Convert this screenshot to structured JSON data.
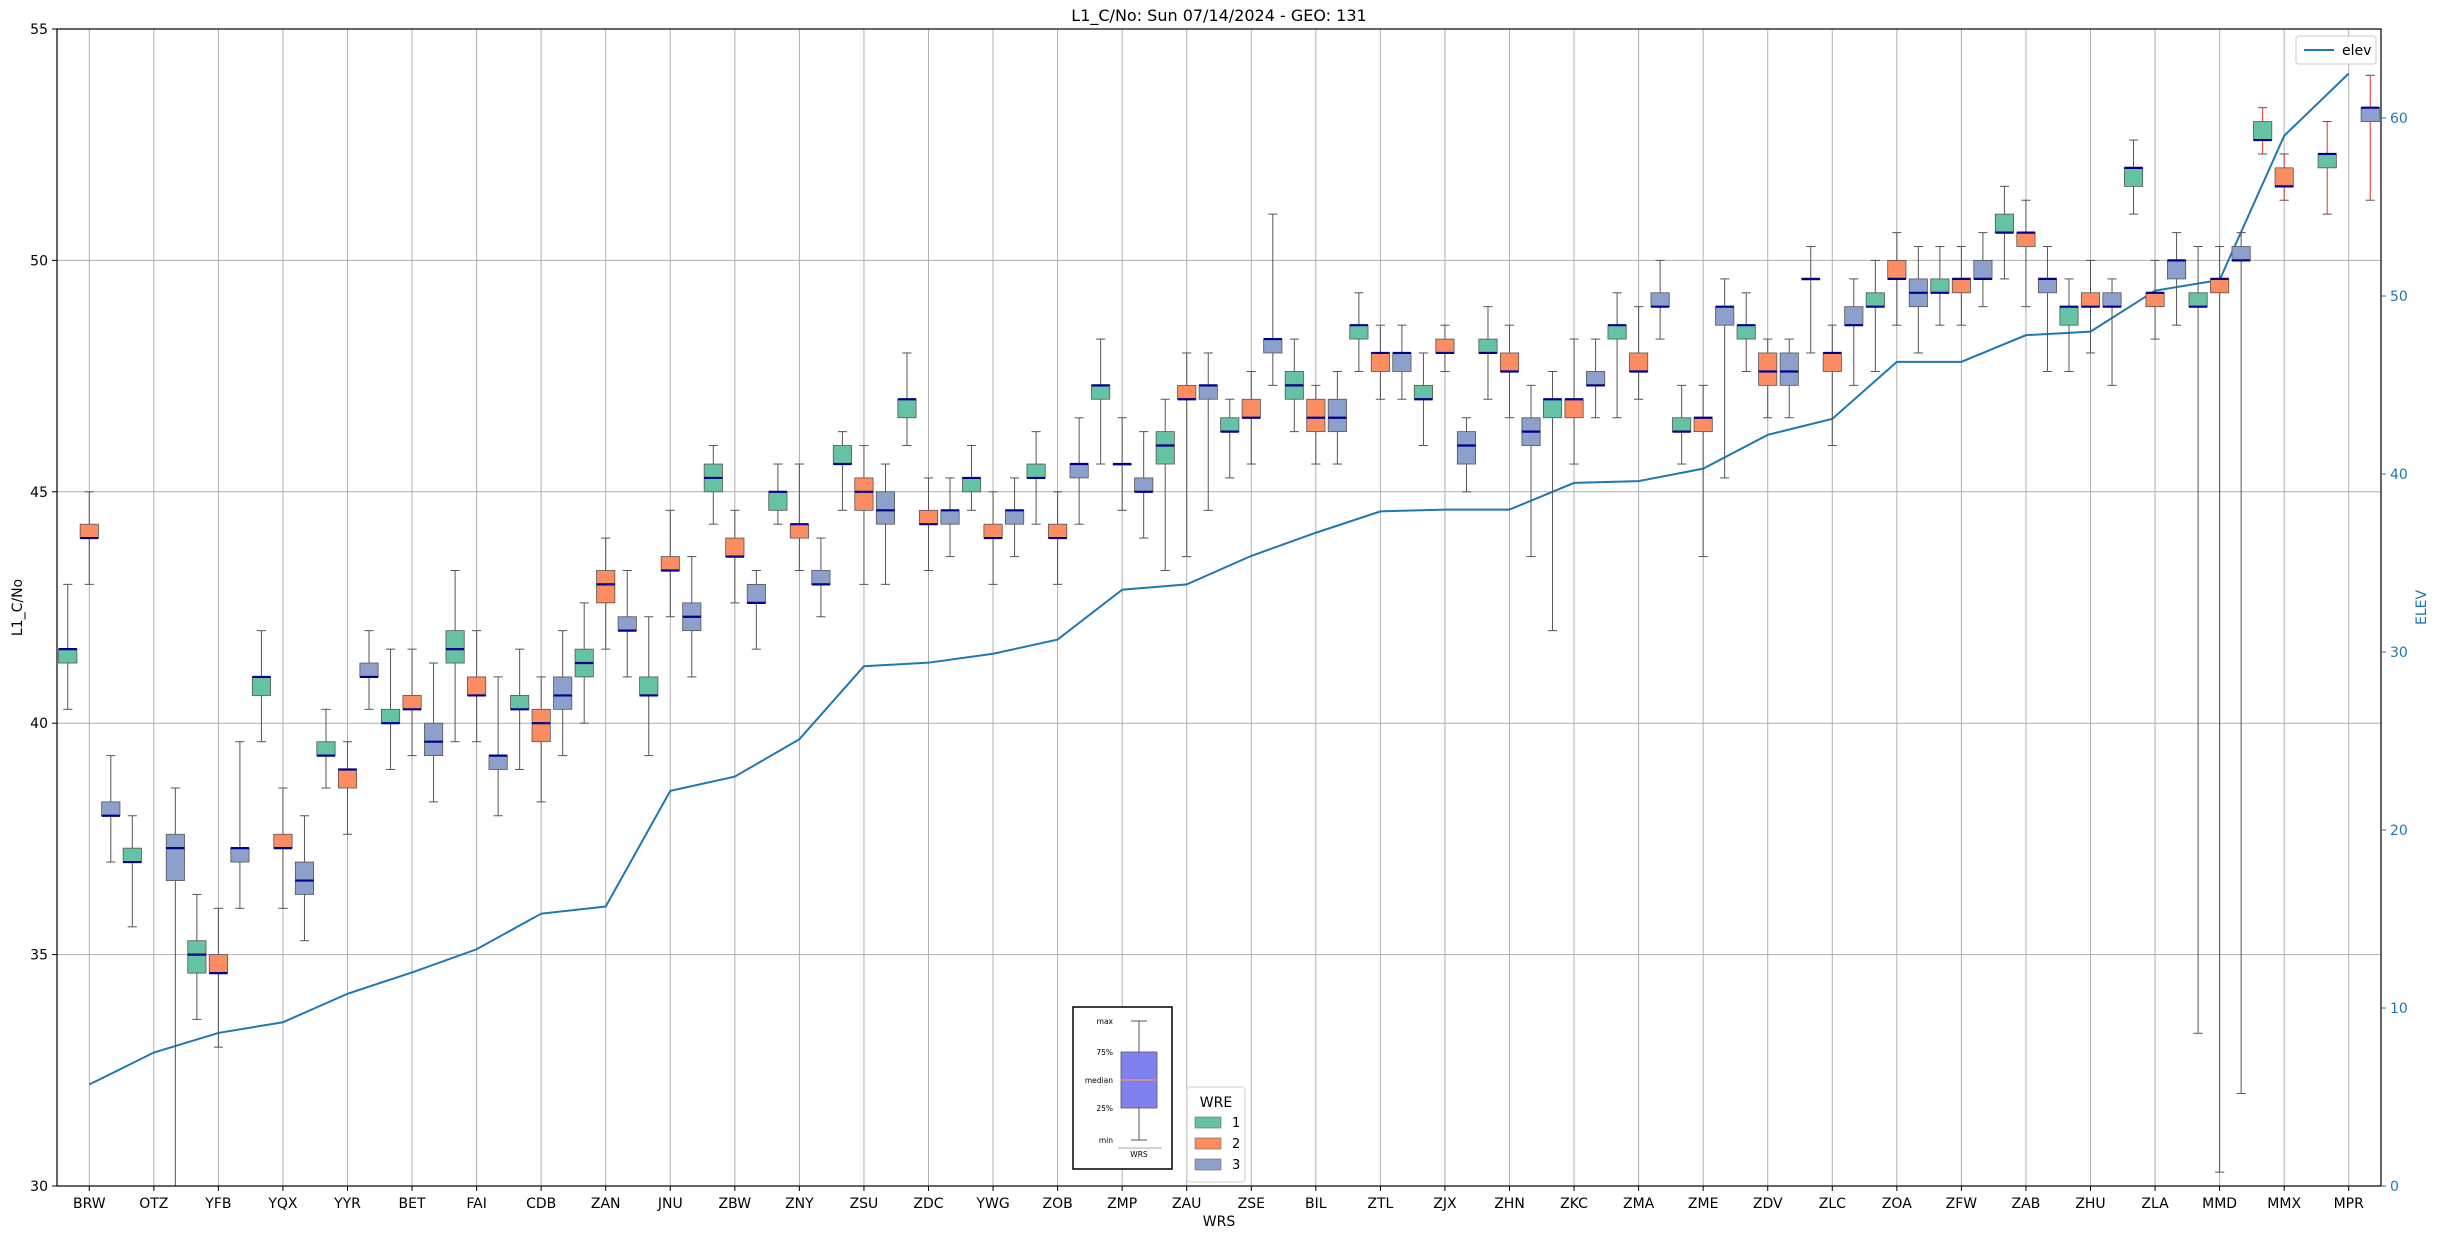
{
  "chart_data": {
    "type": "box",
    "title": "L1_C/No: Sun 07/14/2024 - GEO: 131",
    "xlabel": "WRS",
    "ylabel": "L1_C/No",
    "y2label": "ELEV",
    "ylim": [
      30,
      55
    ],
    "y2lim": [
      0,
      65
    ],
    "yticks": [
      30,
      35,
      40,
      45,
      50,
      55
    ],
    "y2ticks": [
      0,
      10,
      20,
      30,
      40,
      50,
      60
    ],
    "grid": true,
    "categories": [
      "BRW",
      "OTZ",
      "YFB",
      "YQX",
      "YYR",
      "BET",
      "FAI",
      "CDB",
      "ZAN",
      "JNU",
      "ZBW",
      "ZNY",
      "ZSU",
      "ZDC",
      "YWG",
      "ZOB",
      "ZMP",
      "ZAU",
      "ZSE",
      "BIL",
      "ZTL",
      "ZJX",
      "ZHN",
      "ZKC",
      "ZMA",
      "ZME",
      "ZDV",
      "ZLC",
      "ZOA",
      "ZFW",
      "ZAB",
      "ZHU",
      "ZLA",
      "MMD",
      "MMX",
      "MPR"
    ],
    "series_colors": {
      "1": "#66c2a5",
      "2": "#fc8d62",
      "3": "#8da0cb"
    },
    "median_color": "#00008b",
    "boxes": [
      {
        "site": "BRW",
        "wre": "1",
        "min": 40.3,
        "q1": 41.3,
        "median": 41.6,
        "q3": 41.6,
        "max": 43.0
      },
      {
        "site": "BRW",
        "wre": "2",
        "min": 43.0,
        "q1": 44.0,
        "median": 44.0,
        "q3": 44.3,
        "max": 45.0
      },
      {
        "site": "BRW",
        "wre": "3",
        "min": 37.0,
        "q1": 38.0,
        "median": 38.0,
        "q3": 38.3,
        "max": 39.3
      },
      {
        "site": "OTZ",
        "wre": "1",
        "min": 35.6,
        "q1": 37.0,
        "median": 37.0,
        "q3": 37.3,
        "max": 38.0
      },
      {
        "site": "OTZ",
        "wre": "3",
        "min": 30.0,
        "q1": 36.6,
        "median": 37.3,
        "q3": 37.6,
        "max": 38.6
      },
      {
        "site": "YFB",
        "wre": "1",
        "min": 33.6,
        "q1": 34.6,
        "median": 35.0,
        "q3": 35.3,
        "max": 36.3
      },
      {
        "site": "YFB",
        "wre": "2",
        "min": 33.0,
        "q1": 34.6,
        "median": 34.6,
        "q3": 35.0,
        "max": 36.0
      },
      {
        "site": "YFB",
        "wre": "3",
        "min": 36.0,
        "q1": 37.0,
        "median": 37.3,
        "q3": 37.3,
        "max": 39.6
      },
      {
        "site": "YQX",
        "wre": "1",
        "min": 39.6,
        "q1": 40.6,
        "median": 41.0,
        "q3": 41.0,
        "max": 42.0
      },
      {
        "site": "YQX",
        "wre": "2",
        "min": 36.0,
        "q1": 37.3,
        "median": 37.3,
        "q3": 37.6,
        "max": 38.6
      },
      {
        "site": "YQX",
        "wre": "3",
        "min": 35.3,
        "q1": 36.3,
        "median": 36.6,
        "q3": 37.0,
        "max": 38.0
      },
      {
        "site": "YYR",
        "wre": "1",
        "min": 38.6,
        "q1": 39.3,
        "median": 39.3,
        "q3": 39.6,
        "max": 40.3
      },
      {
        "site": "YYR",
        "wre": "2",
        "min": 37.6,
        "q1": 38.6,
        "median": 39.0,
        "q3": 39.0,
        "max": 39.6
      },
      {
        "site": "YYR",
        "wre": "3",
        "min": 40.3,
        "q1": 41.0,
        "median": 41.0,
        "q3": 41.3,
        "max": 42.0
      },
      {
        "site": "BET",
        "wre": "1",
        "min": 39.0,
        "q1": 40.0,
        "median": 40.0,
        "q3": 40.3,
        "max": 41.6
      },
      {
        "site": "BET",
        "wre": "2",
        "min": 39.3,
        "q1": 40.3,
        "median": 40.3,
        "q3": 40.6,
        "max": 41.6
      },
      {
        "site": "BET",
        "wre": "3",
        "min": 38.3,
        "q1": 39.3,
        "median": 39.6,
        "q3": 40.0,
        "max": 41.3
      },
      {
        "site": "FAI",
        "wre": "1",
        "min": 39.6,
        "q1": 41.3,
        "median": 41.6,
        "q3": 42.0,
        "max": 43.3
      },
      {
        "site": "FAI",
        "wre": "2",
        "min": 39.6,
        "q1": 40.6,
        "median": 40.6,
        "q3": 41.0,
        "max": 42.0
      },
      {
        "site": "FAI",
        "wre": "3",
        "min": 38.0,
        "q1": 39.0,
        "median": 39.3,
        "q3": 39.3,
        "max": 41.0
      },
      {
        "site": "CDB",
        "wre": "1",
        "min": 39.0,
        "q1": 40.3,
        "median": 40.3,
        "q3": 40.6,
        "max": 41.6
      },
      {
        "site": "CDB",
        "wre": "2",
        "min": 38.3,
        "q1": 39.6,
        "median": 40.0,
        "q3": 40.3,
        "max": 41.0
      },
      {
        "site": "CDB",
        "wre": "3",
        "min": 39.3,
        "q1": 40.3,
        "median": 40.6,
        "q3": 41.0,
        "max": 42.0
      },
      {
        "site": "ZAN",
        "wre": "1",
        "min": 40.0,
        "q1": 41.0,
        "median": 41.3,
        "q3": 41.6,
        "max": 42.6
      },
      {
        "site": "ZAN",
        "wre": "2",
        "min": 41.6,
        "q1": 42.6,
        "median": 43.0,
        "q3": 43.3,
        "max": 44.0
      },
      {
        "site": "ZAN",
        "wre": "3",
        "min": 41.0,
        "q1": 42.0,
        "median": 42.0,
        "q3": 42.3,
        "max": 43.3
      },
      {
        "site": "JNU",
        "wre": "1",
        "min": 39.3,
        "q1": 40.6,
        "median": 40.6,
        "q3": 41.0,
        "max": 42.3
      },
      {
        "site": "JNU",
        "wre": "2",
        "min": 42.3,
        "q1": 43.3,
        "median": 43.3,
        "q3": 43.6,
        "max": 44.6
      },
      {
        "site": "JNU",
        "wre": "3",
        "min": 41.0,
        "q1": 42.0,
        "median": 42.3,
        "q3": 42.6,
        "max": 43.6
      },
      {
        "site": "ZBW",
        "wre": "1",
        "min": 44.3,
        "q1": 45.0,
        "median": 45.3,
        "q3": 45.6,
        "max": 46.0
      },
      {
        "site": "ZBW",
        "wre": "2",
        "min": 42.6,
        "q1": 43.6,
        "median": 43.6,
        "q3": 44.0,
        "max": 44.6
      },
      {
        "site": "ZBW",
        "wre": "3",
        "min": 41.6,
        "q1": 42.6,
        "median": 42.6,
        "q3": 43.0,
        "max": 43.3
      },
      {
        "site": "ZNY",
        "wre": "1",
        "min": 44.3,
        "q1": 44.6,
        "median": 45.0,
        "q3": 45.0,
        "max": 45.6
      },
      {
        "site": "ZNY",
        "wre": "2",
        "min": 43.3,
        "q1": 44.0,
        "median": 44.3,
        "q3": 44.3,
        "max": 45.6
      },
      {
        "site": "ZNY",
        "wre": "3",
        "min": 42.3,
        "q1": 43.0,
        "median": 43.0,
        "q3": 43.3,
        "max": 44.0
      },
      {
        "site": "ZSU",
        "wre": "1",
        "min": 44.6,
        "q1": 45.6,
        "median": 45.6,
        "q3": 46.0,
        "max": 46.3
      },
      {
        "site": "ZSU",
        "wre": "2",
        "min": 43.0,
        "q1": 44.6,
        "median": 45.0,
        "q3": 45.3,
        "max": 46.0
      },
      {
        "site": "ZSU",
        "wre": "3",
        "min": 43.0,
        "q1": 44.3,
        "median": 44.6,
        "q3": 45.0,
        "max": 45.6
      },
      {
        "site": "ZDC",
        "wre": "1",
        "min": 46.0,
        "q1": 46.6,
        "median": 47.0,
        "q3": 47.0,
        "max": 48.0
      },
      {
        "site": "ZDC",
        "wre": "2",
        "min": 43.3,
        "q1": 44.3,
        "median": 44.3,
        "q3": 44.6,
        "max": 45.3
      },
      {
        "site": "ZDC",
        "wre": "3",
        "min": 43.6,
        "q1": 44.3,
        "median": 44.6,
        "q3": 44.6,
        "max": 45.3
      },
      {
        "site": "YWG",
        "wre": "1",
        "min": 44.6,
        "q1": 45.0,
        "median": 45.3,
        "q3": 45.3,
        "max": 46.0
      },
      {
        "site": "YWG",
        "wre": "2",
        "min": 43.0,
        "q1": 44.0,
        "median": 44.0,
        "q3": 44.3,
        "max": 45.0
      },
      {
        "site": "YWG",
        "wre": "3",
        "min": 43.6,
        "q1": 44.3,
        "median": 44.6,
        "q3": 44.6,
        "max": 45.3
      },
      {
        "site": "ZOB",
        "wre": "1",
        "min": 44.3,
        "q1": 45.3,
        "median": 45.3,
        "q3": 45.6,
        "max": 46.3
      },
      {
        "site": "ZOB",
        "wre": "2",
        "min": 43.0,
        "q1": 44.0,
        "median": 44.0,
        "q3": 44.3,
        "max": 45.0
      },
      {
        "site": "ZOB",
        "wre": "3",
        "min": 44.3,
        "q1": 45.3,
        "median": 45.6,
        "q3": 45.6,
        "max": 46.6
      },
      {
        "site": "ZMP",
        "wre": "1",
        "min": 45.6,
        "q1": 47.0,
        "median": 47.3,
        "q3": 47.3,
        "max": 48.3
      },
      {
        "site": "ZMP",
        "wre": "2",
        "min": 44.6,
        "q1": 45.6,
        "median": 45.6,
        "q3": 45.6,
        "max": 46.6
      },
      {
        "site": "ZMP",
        "wre": "3",
        "min": 44.0,
        "q1": 45.0,
        "median": 45.0,
        "q3": 45.3,
        "max": 46.3
      },
      {
        "site": "ZAU",
        "wre": "1",
        "min": 43.3,
        "q1": 45.6,
        "median": 46.0,
        "q3": 46.3,
        "max": 47.0
      },
      {
        "site": "ZAU",
        "wre": "2",
        "min": 43.6,
        "q1": 47.0,
        "median": 47.0,
        "q3": 47.3,
        "max": 48.0
      },
      {
        "site": "ZAU",
        "wre": "3",
        "min": 44.6,
        "q1": 47.0,
        "median": 47.3,
        "q3": 47.3,
        "max": 48.0
      },
      {
        "site": "ZSE",
        "wre": "1",
        "min": 45.3,
        "q1": 46.3,
        "median": 46.3,
        "q3": 46.6,
        "max": 47.0
      },
      {
        "site": "ZSE",
        "wre": "2",
        "min": 45.6,
        "q1": 46.6,
        "median": 46.6,
        "q3": 47.0,
        "max": 47.6
      },
      {
        "site": "ZSE",
        "wre": "3",
        "min": 47.3,
        "q1": 48.0,
        "median": 48.3,
        "q3": 48.3,
        "max": 51.0
      },
      {
        "site": "BIL",
        "wre": "1",
        "min": 46.3,
        "q1": 47.0,
        "median": 47.3,
        "q3": 47.6,
        "max": 48.3
      },
      {
        "site": "BIL",
        "wre": "2",
        "min": 45.6,
        "q1": 46.3,
        "median": 46.6,
        "q3": 47.0,
        "max": 47.3
      },
      {
        "site": "BIL",
        "wre": "3",
        "min": 45.6,
        "q1": 46.3,
        "median": 46.6,
        "q3": 47.0,
        "max": 47.6
      },
      {
        "site": "ZTL",
        "wre": "1",
        "min": 47.6,
        "q1": 48.3,
        "median": 48.6,
        "q3": 48.6,
        "max": 49.3
      },
      {
        "site": "ZTL",
        "wre": "2",
        "min": 47.0,
        "q1": 47.6,
        "median": 48.0,
        "q3": 48.0,
        "max": 48.6
      },
      {
        "site": "ZTL",
        "wre": "3",
        "min": 47.0,
        "q1": 47.6,
        "median": 48.0,
        "q3": 48.0,
        "max": 48.6
      },
      {
        "site": "ZJX",
        "wre": "1",
        "min": 46.0,
        "q1": 47.0,
        "median": 47.0,
        "q3": 47.3,
        "max": 48.0
      },
      {
        "site": "ZJX",
        "wre": "2",
        "min": 47.6,
        "q1": 48.0,
        "median": 48.0,
        "q3": 48.3,
        "max": 48.6
      },
      {
        "site": "ZJX",
        "wre": "3",
        "min": 45.0,
        "q1": 45.6,
        "median": 46.0,
        "q3": 46.3,
        "max": 46.6
      },
      {
        "site": "ZHN",
        "wre": "1",
        "min": 47.0,
        "q1": 48.0,
        "median": 48.0,
        "q3": 48.3,
        "max": 49.0
      },
      {
        "site": "ZHN",
        "wre": "2",
        "min": 46.6,
        "q1": 47.6,
        "median": 47.6,
        "q3": 48.0,
        "max": 48.6
      },
      {
        "site": "ZHN",
        "wre": "3",
        "min": 43.6,
        "q1": 46.0,
        "median": 46.3,
        "q3": 46.6,
        "max": 47.3
      },
      {
        "site": "ZKC",
        "wre": "1",
        "min": 42.0,
        "q1": 46.6,
        "median": 47.0,
        "q3": 47.0,
        "max": 47.6
      },
      {
        "site": "ZKC",
        "wre": "2",
        "min": 45.6,
        "q1": 46.6,
        "median": 47.0,
        "q3": 47.0,
        "max": 48.3
      },
      {
        "site": "ZKC",
        "wre": "3",
        "min": 46.6,
        "q1": 47.3,
        "median": 47.3,
        "q3": 47.6,
        "max": 48.3
      },
      {
        "site": "ZMA",
        "wre": "1",
        "min": 46.6,
        "q1": 48.3,
        "median": 48.6,
        "q3": 48.6,
        "max": 49.3
      },
      {
        "site": "ZMA",
        "wre": "2",
        "min": 47.0,
        "q1": 47.6,
        "median": 47.6,
        "q3": 48.0,
        "max": 49.0
      },
      {
        "site": "ZMA",
        "wre": "3",
        "min": 48.3,
        "q1": 49.0,
        "median": 49.0,
        "q3": 49.3,
        "max": 50.0
      },
      {
        "site": "ZME",
        "wre": "1",
        "min": 45.6,
        "q1": 46.3,
        "median": 46.3,
        "q3": 46.6,
        "max": 47.3
      },
      {
        "site": "ZME",
        "wre": "2",
        "min": 43.6,
        "q1": 46.3,
        "median": 46.6,
        "q3": 46.6,
        "max": 47.3
      },
      {
        "site": "ZME",
        "wre": "3",
        "min": 45.3,
        "q1": 48.6,
        "median": 49.0,
        "q3": 49.0,
        "max": 49.6
      },
      {
        "site": "ZDV",
        "wre": "1",
        "min": 47.6,
        "q1": 48.3,
        "median": 48.6,
        "q3": 48.6,
        "max": 49.3
      },
      {
        "site": "ZDV",
        "wre": "2",
        "min": 46.6,
        "q1": 47.3,
        "median": 47.6,
        "q3": 48.0,
        "max": 48.3
      },
      {
        "site": "ZDV",
        "wre": "3",
        "min": 46.6,
        "q1": 47.3,
        "median": 47.6,
        "q3": 48.0,
        "max": 48.3
      },
      {
        "site": "ZLC",
        "wre": "1",
        "min": 48.0,
        "q1": 49.6,
        "median": 49.6,
        "q3": 49.6,
        "max": 50.3
      },
      {
        "site": "ZLC",
        "wre": "2",
        "min": 46.0,
        "q1": 47.6,
        "median": 48.0,
        "q3": 48.0,
        "max": 48.6
      },
      {
        "site": "ZLC",
        "wre": "3",
        "min": 47.3,
        "q1": 48.6,
        "median": 48.6,
        "q3": 49.0,
        "max": 49.6
      },
      {
        "site": "ZOA",
        "wre": "1",
        "min": 47.6,
        "q1": 49.0,
        "median": 49.0,
        "q3": 49.3,
        "max": 50.0
      },
      {
        "site": "ZOA",
        "wre": "2",
        "min": 48.6,
        "q1": 49.6,
        "median": 49.6,
        "q3": 50.0,
        "max": 50.6
      },
      {
        "site": "ZOA",
        "wre": "3",
        "min": 48.0,
        "q1": 49.0,
        "median": 49.3,
        "q3": 49.6,
        "max": 50.3
      },
      {
        "site": "ZFW",
        "wre": "1",
        "min": 48.6,
        "q1": 49.3,
        "median": 49.3,
        "q3": 49.6,
        "max": 50.3
      },
      {
        "site": "ZFW",
        "wre": "2",
        "min": 48.6,
        "q1": 49.3,
        "median": 49.6,
        "q3": 49.6,
        "max": 50.3
      },
      {
        "site": "ZFW",
        "wre": "3",
        "min": 49.0,
        "q1": 49.6,
        "median": 49.6,
        "q3": 50.0,
        "max": 50.6
      },
      {
        "site": "ZAB",
        "wre": "1",
        "min": 49.6,
        "q1": 50.6,
        "median": 50.6,
        "q3": 51.0,
        "max": 51.6
      },
      {
        "site": "ZAB",
        "wre": "2",
        "min": 49.0,
        "q1": 50.3,
        "median": 50.6,
        "q3": 50.6,
        "max": 51.3
      },
      {
        "site": "ZAB",
        "wre": "3",
        "min": 47.6,
        "q1": 49.3,
        "median": 49.6,
        "q3": 49.6,
        "max": 50.3
      },
      {
        "site": "ZHU",
        "wre": "1",
        "min": 47.6,
        "q1": 48.6,
        "median": 49.0,
        "q3": 49.0,
        "max": 49.6
      },
      {
        "site": "ZHU",
        "wre": "2",
        "min": 48.0,
        "q1": 49.0,
        "median": 49.0,
        "q3": 49.3,
        "max": 50.0
      },
      {
        "site": "ZHU",
        "wre": "3",
        "min": 47.3,
        "q1": 49.0,
        "median": 49.0,
        "q3": 49.3,
        "max": 49.6
      },
      {
        "site": "ZLA",
        "wre": "1",
        "min": 51.0,
        "q1": 51.6,
        "median": 52.0,
        "q3": 52.0,
        "max": 52.6
      },
      {
        "site": "ZLA",
        "wre": "2",
        "min": 48.3,
        "q1": 49.0,
        "median": 49.3,
        "q3": 49.3,
        "max": 50.0
      },
      {
        "site": "ZLA",
        "wre": "3",
        "min": 48.6,
        "q1": 49.6,
        "median": 50.0,
        "q3": 50.0,
        "max": 50.6
      },
      {
        "site": "MMD",
        "wre": "1",
        "min": 33.3,
        "q1": 49.0,
        "median": 49.0,
        "q3": 49.3,
        "max": 50.3
      },
      {
        "site": "MMD",
        "wre": "2",
        "min": 30.3,
        "q1": 49.3,
        "median": 49.6,
        "q3": 49.6,
        "max": 50.3
      },
      {
        "site": "MMD",
        "wre": "3",
        "min": 32.0,
        "q1": 50.0,
        "median": 50.0,
        "q3": 50.3,
        "max": 50.6
      },
      {
        "site": "MMX",
        "wre": "1",
        "min": 52.3,
        "q1": 52.6,
        "median": 52.6,
        "q3": 53.0,
        "max": 53.3
      },
      {
        "site": "MMX",
        "wre": "2",
        "min": 51.3,
        "q1": 51.6,
        "median": 51.6,
        "q3": 52.0,
        "max": 52.3
      },
      {
        "site": "MPR",
        "wre": "1",
        "min": 51.0,
        "q1": 52.0,
        "median": 52.3,
        "q3": 52.3,
        "max": 53.0
      },
      {
        "site": "MPR",
        "wre": "3",
        "min": 51.3,
        "q1": 53.0,
        "median": 53.3,
        "q3": 53.3,
        "max": 54.0
      }
    ],
    "elev_series": {
      "name": "elev",
      "color": "#1f77b4",
      "values": [
        5.7,
        7.5,
        8.6,
        9.2,
        10.8,
        12.0,
        13.3,
        15.3,
        15.7,
        22.2,
        23.0,
        25.1,
        29.2,
        29.4,
        29.9,
        30.7,
        33.5,
        33.8,
        35.4,
        36.7,
        37.9,
        38.0,
        38.0,
        39.5,
        39.6,
        40.3,
        42.2,
        43.1,
        46.3,
        46.3,
        47.8,
        48.0,
        50.3,
        50.9,
        59.0,
        62.5
      ]
    },
    "legend": {
      "title": "WRE",
      "placement": "bottom-center",
      "entries": [
        "1",
        "2",
        "3"
      ]
    },
    "elev_legend": {
      "placement": "top-right",
      "label": "elev"
    },
    "key_box": {
      "labels": [
        "max",
        "75%",
        "median",
        "25%",
        "min"
      ],
      "caption": "WRS"
    }
  }
}
